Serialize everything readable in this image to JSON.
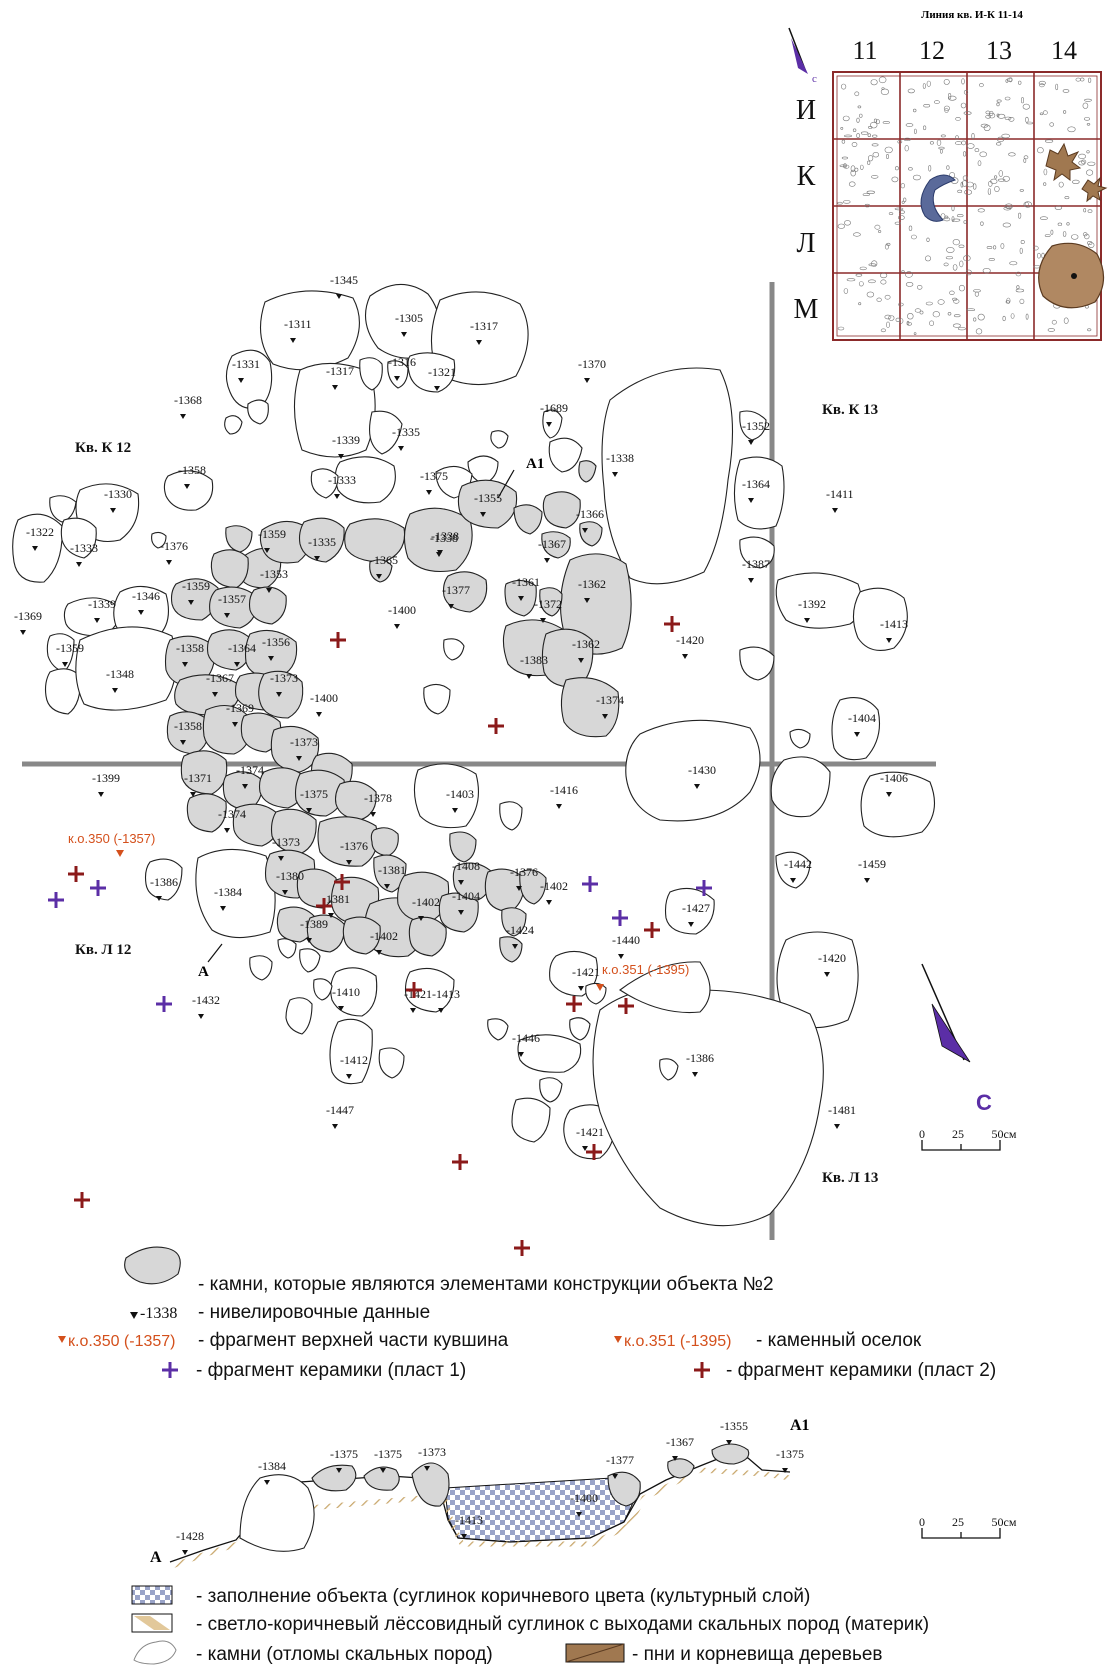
{
  "inset": {
    "title": "Линия кв. И-К 11-14",
    "columns": [
      "11",
      "12",
      "13",
      "14"
    ],
    "rows": [
      "И",
      "К",
      "Л",
      "М"
    ],
    "north_letter": "с"
  },
  "plan": {
    "squares": [
      "Кв. К 12",
      "Кв. К 13",
      "Кв. Л 12",
      "Кв. Л 13"
    ],
    "section_labels": [
      "А",
      "А1"
    ],
    "north_letter": "С",
    "scale": [
      "0",
      "25",
      "50см"
    ],
    "levels": [
      "-1345",
      "-1311",
      "-1305",
      "-1317",
      "-1331",
      "-1317",
      "-1316",
      "-1321",
      "-1370",
      "-1368",
      "-1339",
      "-1335",
      "-1689",
      "-1352",
      "-1330",
      "-1358",
      "-1333",
      "-1375",
      "-1355",
      "-1338",
      "-1364",
      "-1411",
      "-1322",
      "-1333",
      "-1376",
      "-1359",
      "-1335",
      "-1365",
      "-1338",
      "-1367",
      "-1366",
      "-1353",
      "-1346",
      "-1339",
      "-1359",
      "-1357",
      "-1377",
      "-1400",
      "-1361",
      "-1372",
      "-1362",
      "-1387",
      "-1392",
      "-1369",
      "-1359",
      "-1358",
      "-1364",
      "-1356",
      "-1362",
      "-1383",
      "-1420",
      "-1413",
      "-1348",
      "-1367",
      "-1373",
      "-1400",
      "-1374",
      "-1369",
      "-1358",
      "-1404",
      "-1373",
      "-1430",
      "-1399",
      "-1371",
      "-1374",
      "-1375",
      "-1378",
      "-1403",
      "-1416",
      "-1406",
      "-1374",
      "-1373",
      "-1376",
      "-1381",
      "-1408",
      "-1376",
      "-1402",
      "-1442",
      "-1459",
      "-1386",
      "-1384",
      "-1380",
      "-1381",
      "-1402",
      "-1404",
      "-1427",
      "-1389",
      "-1402",
      "-1424",
      "-1440",
      "-1421",
      "-1421",
      "-1420",
      "-1410",
      "-1413",
      "-1432",
      "-1446",
      "-1386",
      "-1412",
      "-1447",
      "-1421",
      "-1481",
      "-1338"
    ],
    "finds": [
      {
        "label": "к.о.350 (-1357)"
      },
      {
        "label": "к.о.351 (-1395)"
      }
    ]
  },
  "legend_top": {
    "stone_structure": "- камни, которые являются элементами конструкции объекта №2",
    "level_sample": "-1338",
    "level_text": "- нивелировочные данные",
    "find1_label": "к.о.350 (-1357)",
    "find1_text": "- фрагмент верхней части кувшина",
    "find2_label": "к.о.351 (-1395)",
    "find2_text": "- каменный оселок",
    "ceramic1": "- фрагмент керамики (пласт 1)",
    "ceramic2": "- фрагмент керамики (пласт 2)"
  },
  "section": {
    "label_a": "А",
    "label_a1": "А1",
    "levels": [
      "-1428",
      "-1384",
      "-1375",
      "-1375",
      "-1373",
      "-1413",
      "-1400",
      "-1377",
      "-1367",
      "-1355",
      "-1375"
    ],
    "scale": [
      "0",
      "25",
      "50см"
    ]
  },
  "legend_bottom": {
    "fill": "- заполнение объекта (суглинок коричневого цвета (культурный слой)",
    "loam": "- светло-коричневый лёссовидный суглинок с выходами скальных пород (материк)",
    "stones": "- камни (отломы скальных пород)",
    "roots": "- пни и корневища деревьев"
  },
  "colors": {
    "structure_stone": "#d7d7d7",
    "ceramic_layer1": "#5b2ea6",
    "ceramic_layer2": "#8b1a1a",
    "find_label": "#d4501c",
    "north_arrow": "#5b2ea6",
    "roots": "#a07850"
  }
}
